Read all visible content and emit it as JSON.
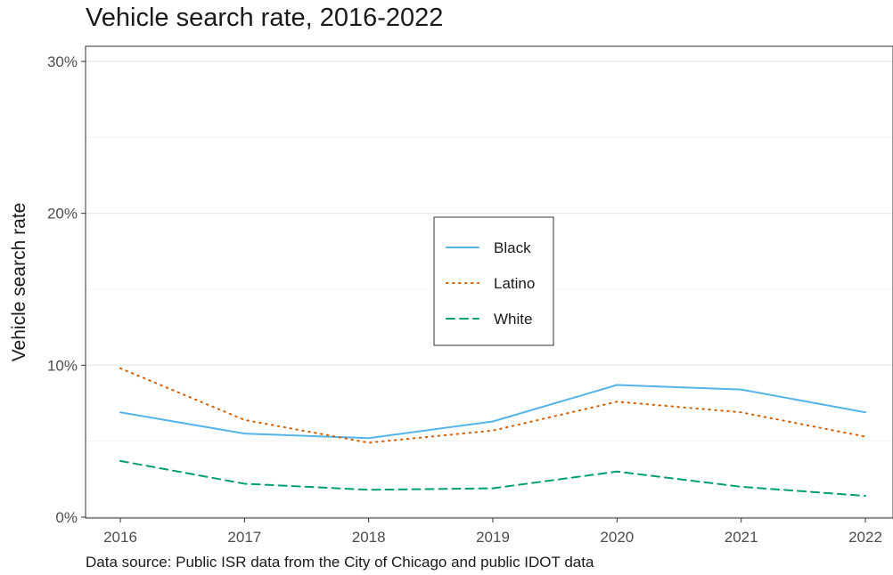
{
  "chart_data": {
    "type": "line",
    "title": "Vehicle search rate, 2016-2022",
    "xlabel": "",
    "ylabel": "Vehicle search rate",
    "caption": "Data source: Public ISR data from the City of Chicago and public IDOT data",
    "x": [
      2016,
      2017,
      2018,
      2019,
      2020,
      2021,
      2022
    ],
    "x_tick_labels": [
      "2016",
      "2017",
      "2018",
      "2019",
      "2020",
      "2021",
      "2022"
    ],
    "ylim": [
      0,
      30
    ],
    "y_ticks": [
      0,
      10,
      20,
      30
    ],
    "y_tick_labels": [
      "0%",
      "10%",
      "20%",
      "30%"
    ],
    "grid": true,
    "legend_position": "center",
    "series": [
      {
        "name": "Black",
        "color": "#56B4E9",
        "dash": "solid",
        "values": [
          6.9,
          5.5,
          5.2,
          6.3,
          8.7,
          8.4,
          6.9
        ]
      },
      {
        "name": "Latino",
        "color": "#D55E00",
        "dash": "dotted",
        "values": [
          9.8,
          6.4,
          4.9,
          5.7,
          7.6,
          6.9,
          5.3
        ]
      },
      {
        "name": "White",
        "color": "#009E73",
        "dash": "dashed",
        "values": [
          3.7,
          2.2,
          1.8,
          1.9,
          3.0,
          2.0,
          1.4
        ]
      }
    ]
  }
}
